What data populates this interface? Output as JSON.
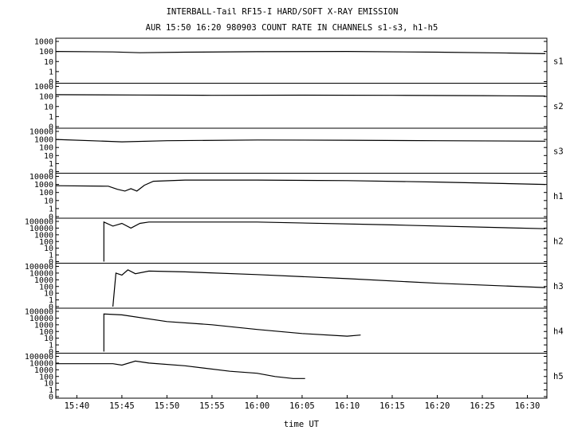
{
  "title_line1": "INTERBALL-Tail RF15-I HARD/SOFT X-RAY EMISSION",
  "title_line2": "AUR 15:50 16:20 980903  COUNT RATE IN CHANNELS s1-s3, h1-h5",
  "xlabel": "time UT",
  "chart_data": {
    "type": "line",
    "scale": "log",
    "x_range": [
      "15:37:40",
      "16:32:10"
    ],
    "x_ticks": [
      "15:40",
      "15:45",
      "15:50",
      "15:55",
      "16:00",
      "16:05",
      "16:10",
      "16:15",
      "16:20",
      "16:25",
      "16:30"
    ],
    "panels": [
      {
        "name": "s1",
        "ytick_labels": [
          "1000",
          "100",
          "10",
          "1",
          "0"
        ],
        "points": [
          [
            "15:37:40",
            100
          ],
          [
            "15:44:00",
            90
          ],
          [
            "15:47:00",
            75
          ],
          [
            "15:52:00",
            85
          ],
          [
            "16:00:00",
            95
          ],
          [
            "16:10:00",
            100
          ],
          [
            "16:20:00",
            85
          ],
          [
            "16:28:00",
            70
          ],
          [
            "16:32:00",
            60
          ]
        ]
      },
      {
        "name": "s2",
        "ytick_labels": [
          "1000",
          "100",
          "10",
          "1",
          "0"
        ],
        "points": [
          [
            "15:37:40",
            150
          ],
          [
            "15:47:00",
            140
          ],
          [
            "15:55:00",
            130
          ],
          [
            "16:05:00",
            135
          ],
          [
            "16:15:00",
            130
          ],
          [
            "16:25:00",
            120
          ],
          [
            "16:32:00",
            110
          ]
        ]
      },
      {
        "name": "s3",
        "ytick_labels": [
          "10000",
          "1000",
          "100",
          "10",
          "1",
          "0"
        ],
        "points": [
          [
            "15:37:40",
            1000
          ],
          [
            "15:45:00",
            500
          ],
          [
            "15:50:00",
            700
          ],
          [
            "16:00:00",
            850
          ],
          [
            "16:10:00",
            800
          ],
          [
            "16:20:00",
            700
          ],
          [
            "16:32:00",
            600
          ]
        ]
      },
      {
        "name": "h1",
        "ytick_labels": [
          "10000",
          "1000",
          "100",
          "10",
          "1",
          "0"
        ],
        "points": [
          [
            "15:37:40",
            700
          ],
          [
            "15:43:30",
            600
          ],
          [
            "15:44:30",
            250
          ],
          [
            "15:45:20",
            150
          ],
          [
            "15:46:00",
            300
          ],
          [
            "15:46:40",
            150
          ],
          [
            "15:47:30",
            800
          ],
          [
            "15:48:30",
            2500
          ],
          [
            "15:52:00",
            3500
          ],
          [
            "16:00:00",
            3500
          ],
          [
            "16:10:00",
            3000
          ],
          [
            "16:20:00",
            2000
          ],
          [
            "16:32:00",
            1000
          ]
        ]
      },
      {
        "name": "h2",
        "ytick_labels": [
          "100000",
          "10000",
          "1000",
          "100",
          "10",
          "1",
          "0"
        ],
        "points": [
          [
            "15:43:00",
            0
          ],
          [
            "15:43:00",
            80000
          ],
          [
            "15:44:00",
            20000
          ],
          [
            "15:45:00",
            50000
          ],
          [
            "15:46:00",
            10000
          ],
          [
            "15:47:00",
            50000
          ],
          [
            "15:48:00",
            80000
          ],
          [
            "16:00:00",
            80000
          ],
          [
            "16:15:00",
            30000
          ],
          [
            "16:32:00",
            8000
          ]
        ]
      },
      {
        "name": "h3",
        "ytick_labels": [
          "100000",
          "10000",
          "1000",
          "100",
          "10",
          "1",
          "0"
        ],
        "points": [
          [
            "15:44:00",
            0
          ],
          [
            "15:44:20",
            10000
          ],
          [
            "15:45:00",
            5000
          ],
          [
            "15:45:40",
            30000
          ],
          [
            "15:46:30",
            8000
          ],
          [
            "15:48:00",
            20000
          ],
          [
            "15:52:00",
            15000
          ],
          [
            "16:00:00",
            6000
          ],
          [
            "16:10:00",
            1500
          ],
          [
            "16:20:00",
            300
          ],
          [
            "16:32:00",
            70
          ]
        ]
      },
      {
        "name": "h4",
        "ytick_labels": [
          "100000",
          "10000",
          "1000",
          "100",
          "10",
          "1",
          "0"
        ],
        "points": [
          [
            "15:43:00",
            0
          ],
          [
            "15:43:00",
            40000
          ],
          [
            "15:45:00",
            30000
          ],
          [
            "15:50:00",
            3000
          ],
          [
            "15:55:00",
            1000
          ],
          [
            "16:00:00",
            200
          ],
          [
            "16:05:00",
            50
          ],
          [
            "16:10:00",
            20
          ],
          [
            "16:11:30",
            30
          ]
        ]
      },
      {
        "name": "h5",
        "ytick_labels": [
          "100000",
          "10000",
          "1000",
          "100",
          "10",
          "1",
          "0"
        ],
        "points": [
          [
            "15:37:40",
            8000
          ],
          [
            "15:44:00",
            8000
          ],
          [
            "15:45:00",
            5000
          ],
          [
            "15:46:30",
            20000
          ],
          [
            "15:48:00",
            10000
          ],
          [
            "15:52:00",
            4000
          ],
          [
            "15:57:00",
            600
          ],
          [
            "16:00:00",
            300
          ],
          [
            "16:02:00",
            100
          ],
          [
            "16:04:00",
            50
          ],
          [
            "16:05:20",
            50
          ]
        ]
      }
    ]
  }
}
